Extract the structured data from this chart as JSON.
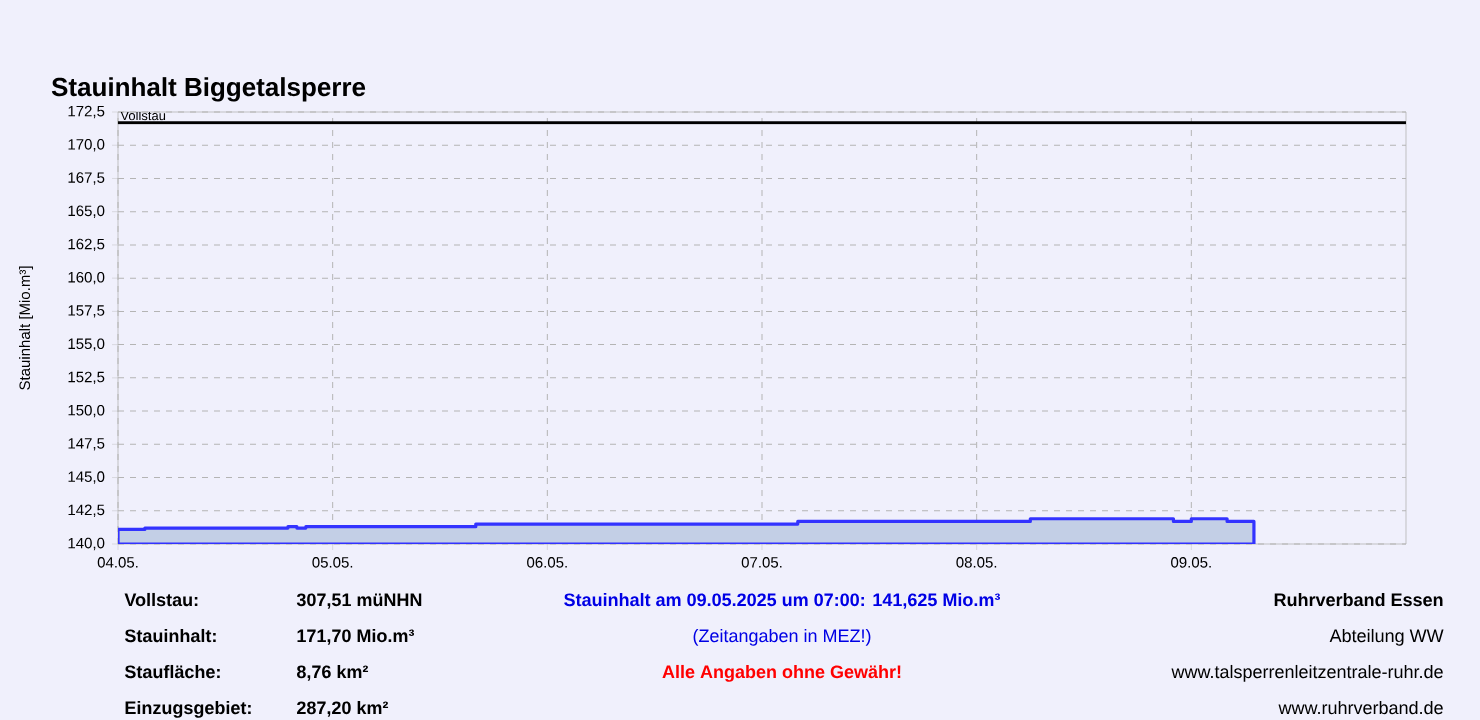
{
  "chart_data": {
    "type": "area",
    "title": "Stauinhalt Biggetalsperre",
    "ylabel": "Stauinhalt [Mio.m³]",
    "x": [
      "2025-05-04T00:00",
      "2025-05-04T03:00",
      "2025-05-04T19:00",
      "2025-05-04T20:00",
      "2025-05-04T21:00",
      "2025-05-05T16:00",
      "2025-05-07T04:00",
      "2025-05-08T06:00",
      "2025-05-08T22:00",
      "2025-05-09T00:00",
      "2025-05-09T04:00",
      "2025-05-09T07:00"
    ],
    "series": [
      {
        "color": "#c3cfe6",
        "values": [
          141.1,
          141.2,
          141.3,
          141.2,
          141.3,
          141.5,
          141.7,
          141.9,
          141.7,
          141.9,
          141.7,
          141.625
        ]
      }
    ],
    "xlim": [
      "2025-05-04",
      "2025-05-10"
    ],
    "xticks": [
      {
        "value": "2025-05-04",
        "label": "04.05."
      },
      {
        "value": "2025-05-05",
        "label": "05.05."
      },
      {
        "value": "2025-05-06",
        "label": "06.05."
      },
      {
        "value": "2025-05-07",
        "label": "07.05."
      },
      {
        "value": "2025-05-08",
        "label": "08.05."
      },
      {
        "value": "2025-05-09",
        "label": "09.05."
      }
    ],
    "ylim": [
      140,
      172.5
    ],
    "yticks": [
      {
        "value": 140,
        "label": "140,0"
      },
      {
        "value": 142.5,
        "label": "142,5"
      },
      {
        "value": 145,
        "label": "145,0"
      },
      {
        "value": 147.5,
        "label": "147,5"
      },
      {
        "value": 150,
        "label": "150,0"
      },
      {
        "value": 152.5,
        "label": "152,5"
      },
      {
        "value": 155,
        "label": "155,0"
      },
      {
        "value": 157.5,
        "label": "157,5"
      },
      {
        "value": 160,
        "label": "160,0"
      },
      {
        "value": 162.5,
        "label": "162,5"
      },
      {
        "value": 165,
        "label": "165,0"
      },
      {
        "value": 167.5,
        "label": "167,5"
      },
      {
        "value": 170,
        "label": "170,0"
      },
      {
        "value": 172.5,
        "label": "172,5"
      }
    ],
    "ref_lines": [
      {
        "axis": "y",
        "value": 171.7,
        "label": "Vollstau",
        "color": "#000000"
      }
    ],
    "grid": true,
    "annotations": [
      "Vollstau:",
      "307,51 müNHN",
      "Stauinhalt:",
      "171,70 Mio.m³",
      "Staufläche:",
      "8,76 km²",
      "Einzugsgebiet:",
      "287,20 km²",
      "Stauinhalt am 09.05.2025 um 07:00:  141,625 Mio.m³",
      "(Zeitangaben in MEZ!)",
      "Alle Angaben ohne Gewähr!",
      "Ruhrverband Essen",
      "Abteilung WW",
      "www.talsperrenleitzentrale-ruhr.de",
      "www.ruhrverband.de"
    ]
  }
}
